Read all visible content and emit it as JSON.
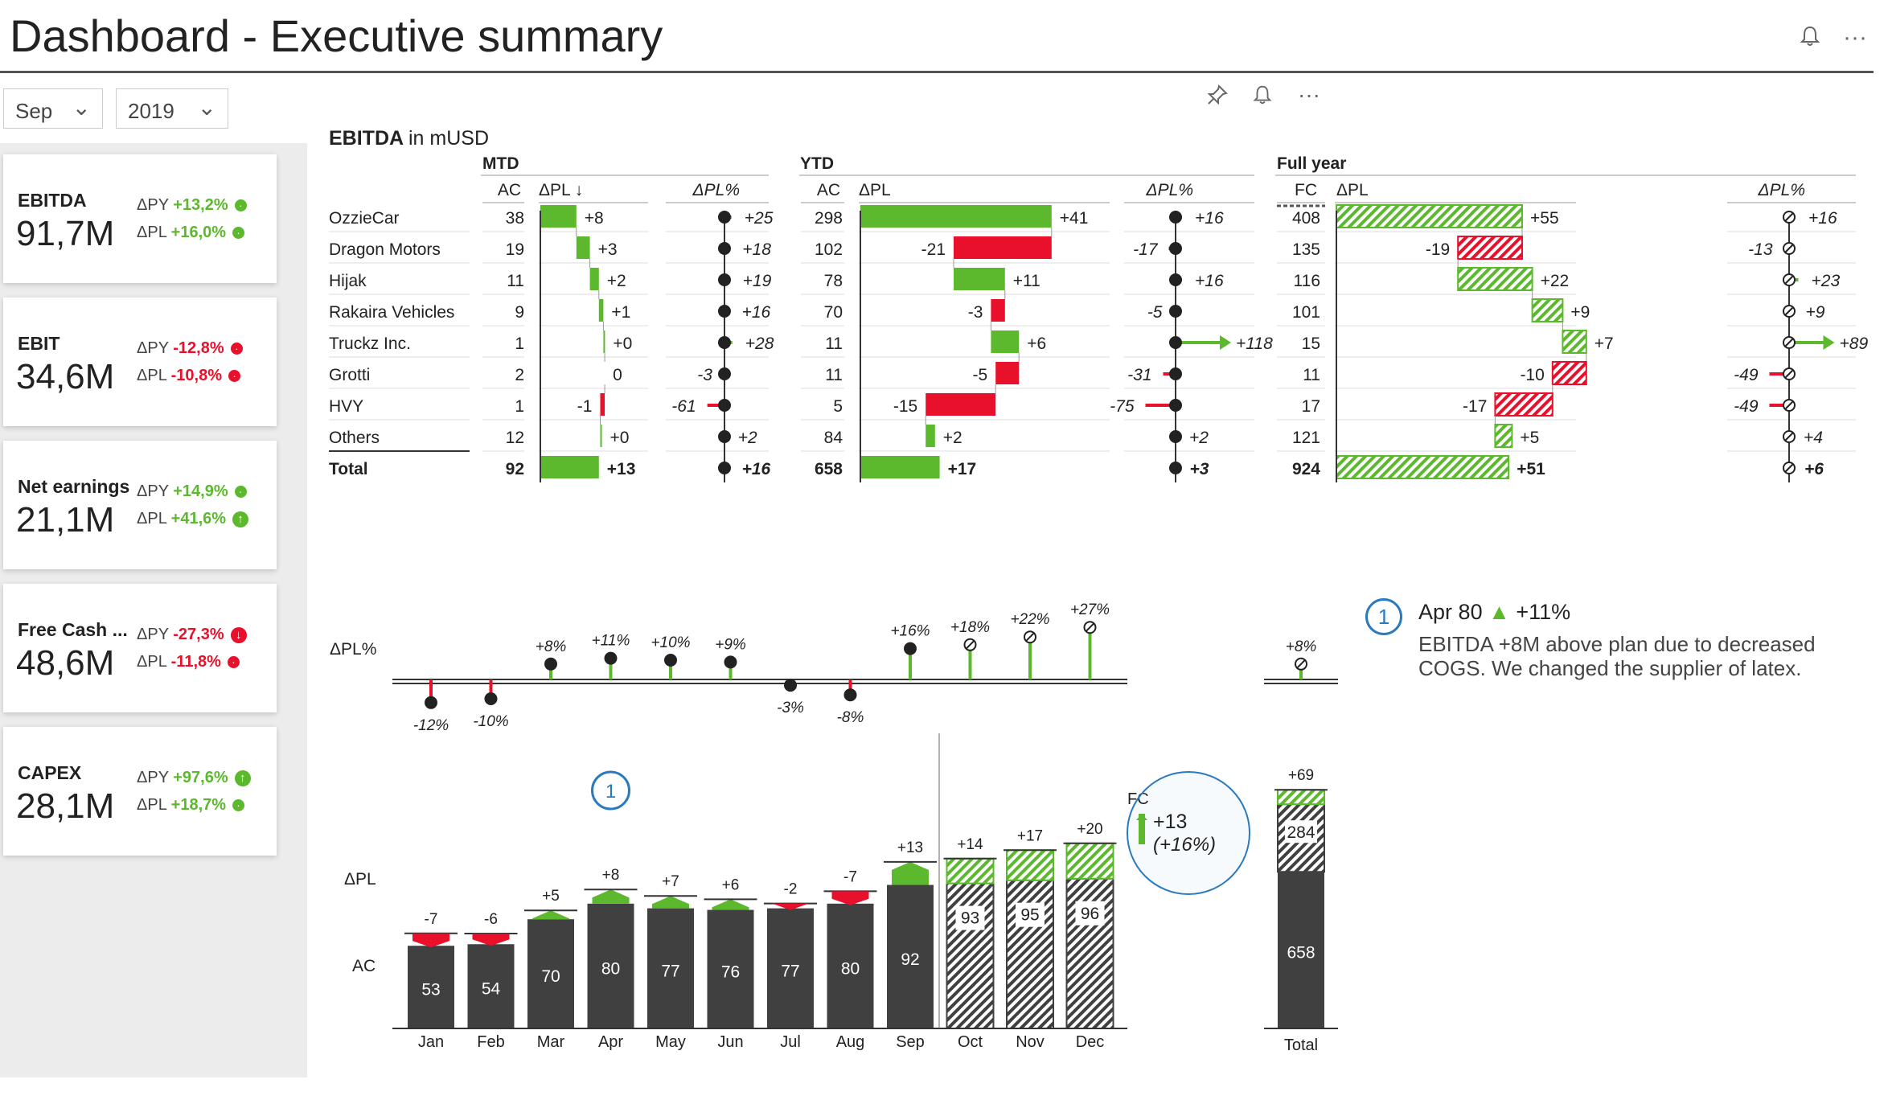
{
  "header": {
    "title": "Dashboard - Executive summary",
    "bell_icon": "bell-icon",
    "more_icon": "more-icon"
  },
  "filters": {
    "month": "Sep",
    "year": "2019"
  },
  "visual_header": {
    "pin_icon": "pin-icon",
    "bell_icon": "bell-icon",
    "more_icon": "more-icon"
  },
  "kpis": [
    {
      "name": "EBITDA",
      "value": "91,7M",
      "dpy_label": "ΔPY",
      "dpy": "+13,2%",
      "dpy_color": "#5cb82d",
      "dpy_icon": "",
      "dpl_label": "ΔPL",
      "dpl": "+16,0%",
      "dpl_color": "#5cb82d",
      "dpl_icon": ""
    },
    {
      "name": "EBIT",
      "value": "34,6M",
      "dpy_label": "ΔPY",
      "dpy": "-12,8%",
      "dpy_color": "#e8102b",
      "dpy_icon": "",
      "dpl_label": "ΔPL",
      "dpl": "-10,8%",
      "dpl_color": "#e8102b",
      "dpl_icon": ""
    },
    {
      "name": "Net earnings",
      "value": "21,1M",
      "dpy_label": "ΔPY",
      "dpy": "+14,9%",
      "dpy_color": "#5cb82d",
      "dpy_icon": "",
      "dpl_label": "ΔPL",
      "dpl": "+41,6%",
      "dpl_color": "#5cb82d",
      "dpl_icon": "↑"
    },
    {
      "name": "Free Cash ...",
      "value": "48,6M",
      "dpy_label": "ΔPY",
      "dpy": "-27,3%",
      "dpy_color": "#e8102b",
      "dpy_icon": "↓",
      "dpl_label": "ΔPL",
      "dpl": "-11,8%",
      "dpl_color": "#e8102b",
      "dpl_icon": ""
    },
    {
      "name": "CAPEX",
      "value": "28,1M",
      "dpy_label": "ΔPY",
      "dpy": "+97,6%",
      "dpy_color": "#5cb82d",
      "dpy_icon": "↑",
      "dpl_label": "ΔPL",
      "dpl": "+18,7%",
      "dpl_color": "#5cb82d",
      "dpl_icon": ""
    }
  ],
  "table": {
    "title_bold": "EBITDA",
    "title_rest": "in mUSD",
    "groups": {
      "mtd": "MTD",
      "ytd": "YTD",
      "fy": "Full year"
    },
    "cols": {
      "ac": "AC",
      "fc": "FC",
      "dpl_sorted": "ΔPL ↓",
      "dpl": "ΔPL",
      "dplp": "ΔPL%"
    },
    "rows": [
      {
        "name": "OzzieCar",
        "mtd_ac": "38",
        "mtd_dpl": 8,
        "mtd_dpl_t": "+8",
        "mtd_pct": 25,
        "mtd_pct_t": "+25",
        "ytd_ac": "298",
        "ytd_dpl": 41,
        "ytd_dpl_t": "+41",
        "ytd_pct": 16,
        "ytd_pct_t": "+16",
        "fy_fc": "408",
        "fy_dpl": 55,
        "fy_dpl_t": "+55",
        "fy_pct": 16,
        "fy_pct_t": "+16"
      },
      {
        "name": "Dragon Motors",
        "mtd_ac": "19",
        "mtd_dpl": 3,
        "mtd_dpl_t": "+3",
        "mtd_pct": 18,
        "mtd_pct_t": "+18",
        "ytd_ac": "102",
        "ytd_dpl": -21,
        "ytd_dpl_t": "-21",
        "ytd_pct": -17,
        "ytd_pct_t": "-17",
        "fy_fc": "135",
        "fy_dpl": -19,
        "fy_dpl_t": "-19",
        "fy_pct": -13,
        "fy_pct_t": "-13"
      },
      {
        "name": "Hijak",
        "mtd_ac": "11",
        "mtd_dpl": 2,
        "mtd_dpl_t": "+2",
        "mtd_pct": 19,
        "mtd_pct_t": "+19",
        "ytd_ac": "78",
        "ytd_dpl": 11,
        "ytd_dpl_t": "+11",
        "ytd_pct": 16,
        "ytd_pct_t": "+16",
        "fy_fc": "116",
        "fy_dpl": 22,
        "fy_dpl_t": "+22",
        "fy_pct": 23,
        "fy_pct_t": "+23"
      },
      {
        "name": "Rakaira Vehicles",
        "mtd_ac": "9",
        "mtd_dpl": 1,
        "mtd_dpl_t": "+1",
        "mtd_pct": 16,
        "mtd_pct_t": "+16",
        "ytd_ac": "70",
        "ytd_dpl": -3,
        "ytd_dpl_t": "-3",
        "ytd_pct": -5,
        "ytd_pct_t": "-5",
        "fy_fc": "101",
        "fy_dpl": 9,
        "fy_dpl_t": "+9",
        "fy_pct": 9,
        "fy_pct_t": "+9"
      },
      {
        "name": "Truckz Inc.",
        "mtd_ac": "1",
        "mtd_dpl": 0.3,
        "mtd_dpl_t": "+0",
        "mtd_pct": 28,
        "mtd_pct_t": "+28",
        "ytd_ac": "11",
        "ytd_dpl": 6,
        "ytd_dpl_t": "+6",
        "ytd_pct": 118,
        "ytd_pct_t": "+118",
        "fy_fc": "15",
        "fy_dpl": 7,
        "fy_dpl_t": "+7",
        "fy_pct": 89,
        "fy_pct_t": "+89"
      },
      {
        "name": "Grotti",
        "mtd_ac": "2",
        "mtd_dpl": 0,
        "mtd_dpl_t": "0",
        "mtd_pct": -3,
        "mtd_pct_t": "-3",
        "ytd_ac": "11",
        "ytd_dpl": -5,
        "ytd_dpl_t": "-5",
        "ytd_pct": -31,
        "ytd_pct_t": "-31",
        "fy_fc": "11",
        "fy_dpl": -10,
        "fy_dpl_t": "-10",
        "fy_pct": -49,
        "fy_pct_t": "-49"
      },
      {
        "name": "HVY",
        "mtd_ac": "1",
        "mtd_dpl": -1,
        "mtd_dpl_t": "-1",
        "mtd_pct": -61,
        "mtd_pct_t": "-61",
        "ytd_ac": "5",
        "ytd_dpl": -15,
        "ytd_dpl_t": "-15",
        "ytd_pct": -75,
        "ytd_pct_t": "-75",
        "fy_fc": "17",
        "fy_dpl": -17,
        "fy_dpl_t": "-17",
        "fy_pct": -49,
        "fy_pct_t": "-49"
      },
      {
        "name": "Others",
        "mtd_ac": "12",
        "mtd_dpl": 0.3,
        "mtd_dpl_t": "+0",
        "mtd_pct": 2,
        "mtd_pct_t": "+2",
        "ytd_ac": "84",
        "ytd_dpl": 2,
        "ytd_dpl_t": "+2",
        "ytd_pct": 2,
        "ytd_pct_t": "+2",
        "fy_fc": "121",
        "fy_dpl": 5,
        "fy_dpl_t": "+5",
        "fy_pct": 4,
        "fy_pct_t": "+4"
      }
    ],
    "total": {
      "name": "Total",
      "mtd_ac": "92",
      "mtd_dpl": 13,
      "mtd_dpl_t": "+13",
      "mtd_pct": 16,
      "mtd_pct_t": "+16",
      "ytd_ac": "658",
      "ytd_dpl": 17,
      "ytd_dpl_t": "+17",
      "ytd_pct": 3,
      "ytd_pct_t": "+3",
      "fy_fc": "924",
      "fy_dpl": 51,
      "fy_dpl_t": "+51",
      "fy_pct": 6,
      "fy_pct_t": "+6"
    }
  },
  "chart_data": {
    "type": "bar",
    "categories": [
      "Jan",
      "Feb",
      "Mar",
      "Apr",
      "May",
      "Jun",
      "Jul",
      "Aug",
      "Sep",
      "Oct",
      "Nov",
      "Dec"
    ],
    "ac": [
      53,
      54,
      70,
      80,
      77,
      76,
      77,
      80,
      92,
      93,
      95,
      96
    ],
    "forecast_from_index": 9,
    "dpl": [
      -7,
      -6,
      5,
      8,
      7,
      6,
      -2,
      -7,
      13,
      14,
      17,
      20
    ],
    "dpl_labels": [
      "-7",
      "-6",
      "+5",
      "+8",
      "+7",
      "+6",
      "-2",
      "-7",
      "+13",
      "+14",
      "+17",
      "+20"
    ],
    "dpl_pct": [
      -12,
      -10,
      8,
      11,
      10,
      9,
      -3,
      -8,
      16,
      18,
      22,
      27
    ],
    "dpl_pct_labels": [
      "-12%",
      "-10%",
      "+8%",
      "+11%",
      "+10%",
      "+9%",
      "-3%",
      "-8%",
      "+16%",
      "+18%",
      "+22%",
      "+27%"
    ],
    "row_labels": {
      "dpl_pct": "ΔPL%",
      "dpl": "ΔPL",
      "ac": "AC",
      "fc": "FC"
    },
    "total": {
      "label": "Total",
      "ac": 658,
      "fc": 284,
      "dpl": 69,
      "dpl_label": "+69",
      "dpl_pct": 8,
      "dpl_pct_label": "+8%"
    },
    "callout": {
      "num": "1",
      "category": "Apr"
    },
    "fc_bubble": {
      "line1": "+13",
      "line2": "(+16%)"
    }
  },
  "note": {
    "num": "1",
    "month": "Apr",
    "value": "80",
    "delta": "+11%",
    "text": "EBITDA +8M above plan due to decreased COGS. We changed the supplier of latex."
  },
  "colors": {
    "green": "#5cb82d",
    "red": "#e8102b",
    "dark": "#404040",
    "blue": "#2a7abf"
  }
}
